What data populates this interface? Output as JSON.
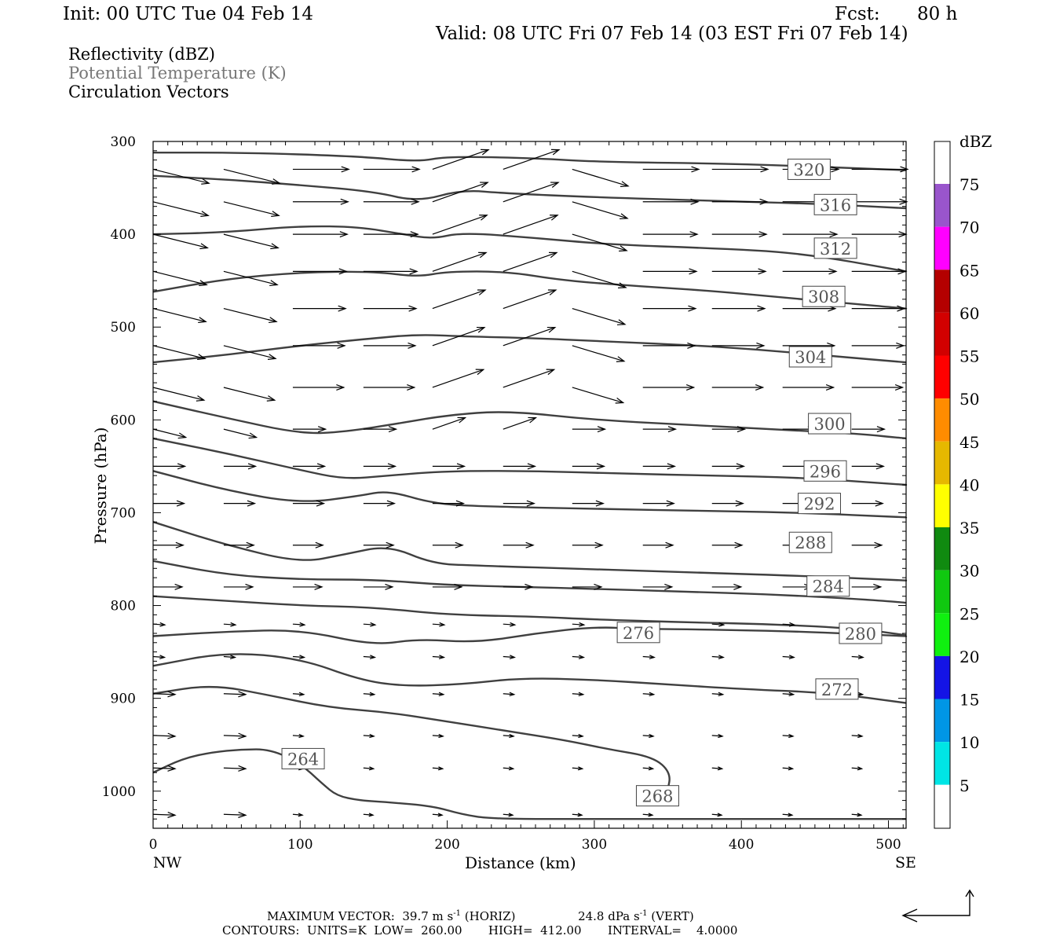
{
  "header": {
    "init": "Init: 00 UTC Tue 04 Feb 14",
    "fcst_label": "Fcst:",
    "fcst_value": "80 h",
    "valid": "Valid: 08 UTC Fri 07 Feb 14 (03 EST Fri 07 Feb 14)"
  },
  "fields": {
    "reflectivity": "Reflectivity (dBZ)",
    "theta": "Potential Temperature (K)",
    "vectors": "Circulation Vectors"
  },
  "colors": {
    "contour": "#404040",
    "theta_text": "#777777",
    "dbz_scale": [
      "#ffffff",
      "#00e5e5",
      "#0096e6",
      "#1414e6",
      "#10f010",
      "#10c810",
      "#108a10",
      "#ffff00",
      "#e6b800",
      "#ff8c00",
      "#ff0000",
      "#d20000",
      "#b40000",
      "#ff00ff",
      "#9955cc",
      "#ffffff"
    ]
  },
  "colorbar": {
    "unit": "dBZ",
    "labels": [
      "5",
      "10",
      "15",
      "20",
      "25",
      "30",
      "35",
      "40",
      "45",
      "50",
      "55",
      "60",
      "65",
      "70",
      "75"
    ]
  },
  "footer": {
    "max_vector_label": "MAXIMUM VECTOR:",
    "horiz_value": "39.7 m s",
    "horiz_sup": "-1",
    "horiz_tag": "(HORIZ)",
    "vert_value": "24.8 dPa s",
    "vert_sup": "-1",
    "vert_tag": "(VERT)",
    "contours": "CONTOURS:  UNITS=K  LOW=  260.00       HIGH=  412.00       INTERVAL=    4.0000"
  },
  "chart_data": {
    "type": "line",
    "title": "Potential Temperature (K)",
    "xlabel": "Distance (km)",
    "ylabel": "Pressure (hPa)",
    "xlim": [
      0,
      512
    ],
    "ylim": [
      1040,
      300
    ],
    "x_ticks": [
      "0",
      "100",
      "200",
      "300",
      "400",
      "500"
    ],
    "x_tick_values": [
      0,
      100,
      200,
      300,
      400,
      500
    ],
    "y_ticks": [
      "300",
      "400",
      "500",
      "600",
      "700",
      "800",
      "900",
      "1000"
    ],
    "y_tick_values": [
      300,
      400,
      500,
      600,
      700,
      800,
      900,
      1000
    ],
    "x_end_labels": {
      "left": "NW",
      "right": "SE"
    },
    "series": [
      {
        "name": "320",
        "label_at": [
          446,
          330
        ],
        "values": [
          [
            0,
            312
          ],
          [
            60,
            312
          ],
          [
            140,
            316
          ],
          [
            180,
            322
          ],
          [
            200,
            316
          ],
          [
            260,
            318
          ],
          [
            300,
            322
          ],
          [
            400,
            324
          ],
          [
            512,
            331
          ]
        ]
      },
      {
        "name": "316",
        "label_at": [
          464,
          368
        ],
        "values": [
          [
            0,
            337
          ],
          [
            50,
            341
          ],
          [
            100,
            347
          ],
          [
            150,
            354
          ],
          [
            180,
            365
          ],
          [
            210,
            352
          ],
          [
            240,
            356
          ],
          [
            300,
            360
          ],
          [
            380,
            364
          ],
          [
            450,
            367
          ],
          [
            512,
            372
          ]
        ]
      },
      {
        "name": "312",
        "label_at": [
          464,
          415
        ],
        "values": [
          [
            0,
            400
          ],
          [
            50,
            398
          ],
          [
            100,
            391
          ],
          [
            140,
            392
          ],
          [
            170,
            400
          ],
          [
            190,
            405
          ],
          [
            210,
            398
          ],
          [
            260,
            404
          ],
          [
            310,
            411
          ],
          [
            380,
            415
          ],
          [
            440,
            420
          ],
          [
            512,
            440
          ]
        ]
      },
      {
        "name": "308",
        "label_at": [
          456,
          467
        ],
        "values": [
          [
            0,
            462
          ],
          [
            50,
            448
          ],
          [
            100,
            441
          ],
          [
            150,
            440
          ],
          [
            180,
            446
          ],
          [
            200,
            440
          ],
          [
            240,
            440
          ],
          [
            280,
            450
          ],
          [
            330,
            456
          ],
          [
            380,
            461
          ],
          [
            420,
            467
          ],
          [
            470,
            474
          ],
          [
            512,
            480
          ]
        ]
      },
      {
        "name": "304",
        "label_at": [
          447,
          532
        ],
        "values": [
          [
            0,
            538
          ],
          [
            50,
            530
          ],
          [
            100,
            520
          ],
          [
            150,
            512
          ],
          [
            180,
            508
          ],
          [
            210,
            510
          ],
          [
            260,
            512
          ],
          [
            300,
            515
          ],
          [
            360,
            519
          ],
          [
            410,
            524
          ],
          [
            460,
            531
          ],
          [
            512,
            538
          ]
        ]
      },
      {
        "name": "300",
        "label_at": [
          460,
          604
        ],
        "values": [
          [
            0,
            580
          ],
          [
            50,
            598
          ],
          [
            100,
            615
          ],
          [
            130,
            613
          ],
          [
            170,
            603
          ],
          [
            200,
            595
          ],
          [
            240,
            590
          ],
          [
            300,
            600
          ],
          [
            360,
            605
          ],
          [
            420,
            610
          ],
          [
            480,
            615
          ],
          [
            512,
            620
          ]
        ]
      },
      {
        "name": "296",
        "label_at": [
          457,
          655
        ],
        "values": [
          [
            0,
            620
          ],
          [
            50,
            636
          ],
          [
            100,
            654
          ],
          [
            130,
            664
          ],
          [
            160,
            660
          ],
          [
            200,
            655
          ],
          [
            260,
            655
          ],
          [
            320,
            658
          ],
          [
            380,
            660
          ],
          [
            440,
            662
          ],
          [
            512,
            670
          ]
        ]
      },
      {
        "name": "292",
        "label_at": [
          453,
          690
        ],
        "values": [
          [
            0,
            655
          ],
          [
            50,
            676
          ],
          [
            100,
            690
          ],
          [
            140,
            682
          ],
          [
            160,
            676
          ],
          [
            190,
            690
          ],
          [
            220,
            693
          ],
          [
            300,
            696
          ],
          [
            380,
            698
          ],
          [
            440,
            700
          ],
          [
            512,
            705
          ]
        ]
      },
      {
        "name": "288",
        "label_at": [
          447,
          732
        ],
        "values": [
          [
            0,
            710
          ],
          [
            50,
            735
          ],
          [
            100,
            754
          ],
          [
            130,
            745
          ],
          [
            160,
            735
          ],
          [
            190,
            755
          ],
          [
            220,
            757
          ],
          [
            300,
            761
          ],
          [
            380,
            765
          ],
          [
            440,
            768
          ],
          [
            512,
            773
          ]
        ]
      },
      {
        "name": "284",
        "label_at": [
          459,
          779
        ],
        "values": [
          [
            0,
            752
          ],
          [
            50,
            767
          ],
          [
            100,
            772
          ],
          [
            150,
            772
          ],
          [
            200,
            778
          ],
          [
            250,
            780
          ],
          [
            300,
            782
          ],
          [
            360,
            785
          ],
          [
            420,
            788
          ],
          [
            480,
            793
          ],
          [
            512,
            797
          ]
        ]
      },
      {
        "name": "280",
        "label_at": [
          481,
          830
        ],
        "values": [
          [
            0,
            790
          ],
          [
            50,
            795
          ],
          [
            100,
            800
          ],
          [
            150,
            802
          ],
          [
            200,
            810
          ],
          [
            260,
            812
          ],
          [
            300,
            815
          ],
          [
            360,
            818
          ],
          [
            420,
            820
          ],
          [
            480,
            825
          ],
          [
            512,
            832
          ]
        ]
      },
      {
        "name": "276",
        "label_at": [
          330,
          829
        ],
        "values": [
          [
            0,
            833
          ],
          [
            50,
            828
          ],
          [
            100,
            826
          ],
          [
            150,
            843
          ],
          [
            180,
            836
          ],
          [
            220,
            840
          ],
          [
            260,
            830
          ],
          [
            300,
            823
          ],
          [
            330,
            825
          ],
          [
            380,
            826
          ],
          [
            440,
            828
          ],
          [
            512,
            833
          ]
        ]
      },
      {
        "name": "272",
        "label_at": [
          465,
          890
        ],
        "values": [
          [
            0,
            865
          ],
          [
            50,
            850
          ],
          [
            100,
            857
          ],
          [
            140,
            880
          ],
          [
            170,
            887
          ],
          [
            210,
            885
          ],
          [
            250,
            878
          ],
          [
            300,
            880
          ],
          [
            350,
            885
          ],
          [
            400,
            890
          ],
          [
            460,
            894
          ],
          [
            512,
            905
          ]
        ]
      },
      {
        "name": "268",
        "label_at": [
          343,
          1005
        ],
        "values": [
          [
            0,
            895
          ],
          [
            40,
            885
          ],
          [
            80,
            897
          ],
          [
            120,
            910
          ],
          [
            160,
            915
          ],
          [
            200,
            925
          ],
          [
            240,
            935
          ],
          [
            280,
            945
          ],
          [
            310,
            955
          ],
          [
            340,
            963
          ],
          [
            352,
            980
          ],
          [
            350,
            1000
          ],
          [
            345,
            1012
          ]
        ]
      },
      {
        "name": "264",
        "label_at": [
          102,
          965
        ],
        "values": [
          [
            0,
            980
          ],
          [
            20,
            965
          ],
          [
            40,
            958
          ],
          [
            60,
            955
          ],
          [
            80,
            955
          ],
          [
            100,
            970
          ],
          [
            115,
            992
          ],
          [
            125,
            1005
          ],
          [
            140,
            1010
          ],
          [
            160,
            1012
          ],
          [
            190,
            1016
          ],
          [
            210,
            1025
          ],
          [
            230,
            1030
          ],
          [
            300,
            1030
          ],
          [
            400,
            1030
          ],
          [
            512,
            1030
          ]
        ]
      }
    ],
    "vectors": {
      "max_horiz_m_s": 39.7,
      "max_vert_dPa_s": 24.8,
      "description": "Circulation vectors generally pointing eastward (toward SE) at all levels"
    },
    "contour_range": {
      "low": 260.0,
      "high": 412.0,
      "interval": 4.0,
      "units": "K"
    }
  }
}
